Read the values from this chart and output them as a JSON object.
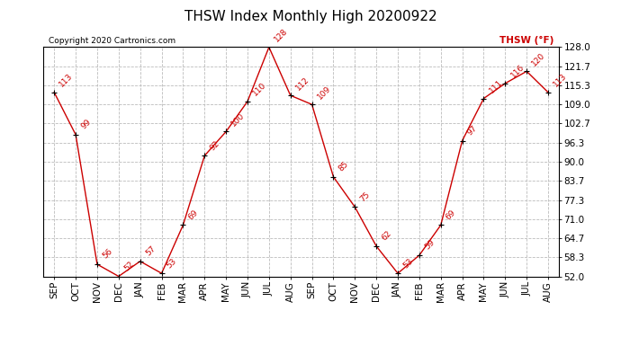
{
  "title": "THSW Index Monthly High 20200922",
  "copyright": "Copyright 2020 Cartronics.com",
  "legend_label": "THSW (°F)",
  "x_labels": [
    "SEP",
    "OCT",
    "NOV",
    "DEC",
    "JAN",
    "FEB",
    "MAR",
    "APR",
    "MAY",
    "JUN",
    "JUL",
    "AUG",
    "SEP",
    "OCT",
    "NOV",
    "DEC",
    "JAN",
    "FEB",
    "MAR",
    "APR",
    "MAY",
    "JUN",
    "JUL",
    "AUG"
  ],
  "y_values": [
    113,
    99,
    56,
    52,
    57,
    53,
    69,
    92,
    100,
    110,
    128,
    112,
    109,
    85,
    75,
    62,
    53,
    59,
    69,
    97,
    111,
    116,
    120,
    113
  ],
  "line_color": "#cc0000",
  "marker_color": "#000000",
  "background_color": "#ffffff",
  "grid_color": "#bbbbbb",
  "ylim_min": 52.0,
  "ylim_max": 128.0,
  "yticks": [
    52.0,
    58.3,
    64.7,
    71.0,
    77.3,
    83.7,
    90.0,
    96.3,
    102.7,
    109.0,
    115.3,
    121.7,
    128.0
  ],
  "title_fontsize": 11,
  "annotation_fontsize": 6.5,
  "tick_fontsize": 7.5,
  "copyright_fontsize": 6.5,
  "legend_fontsize": 7.5
}
